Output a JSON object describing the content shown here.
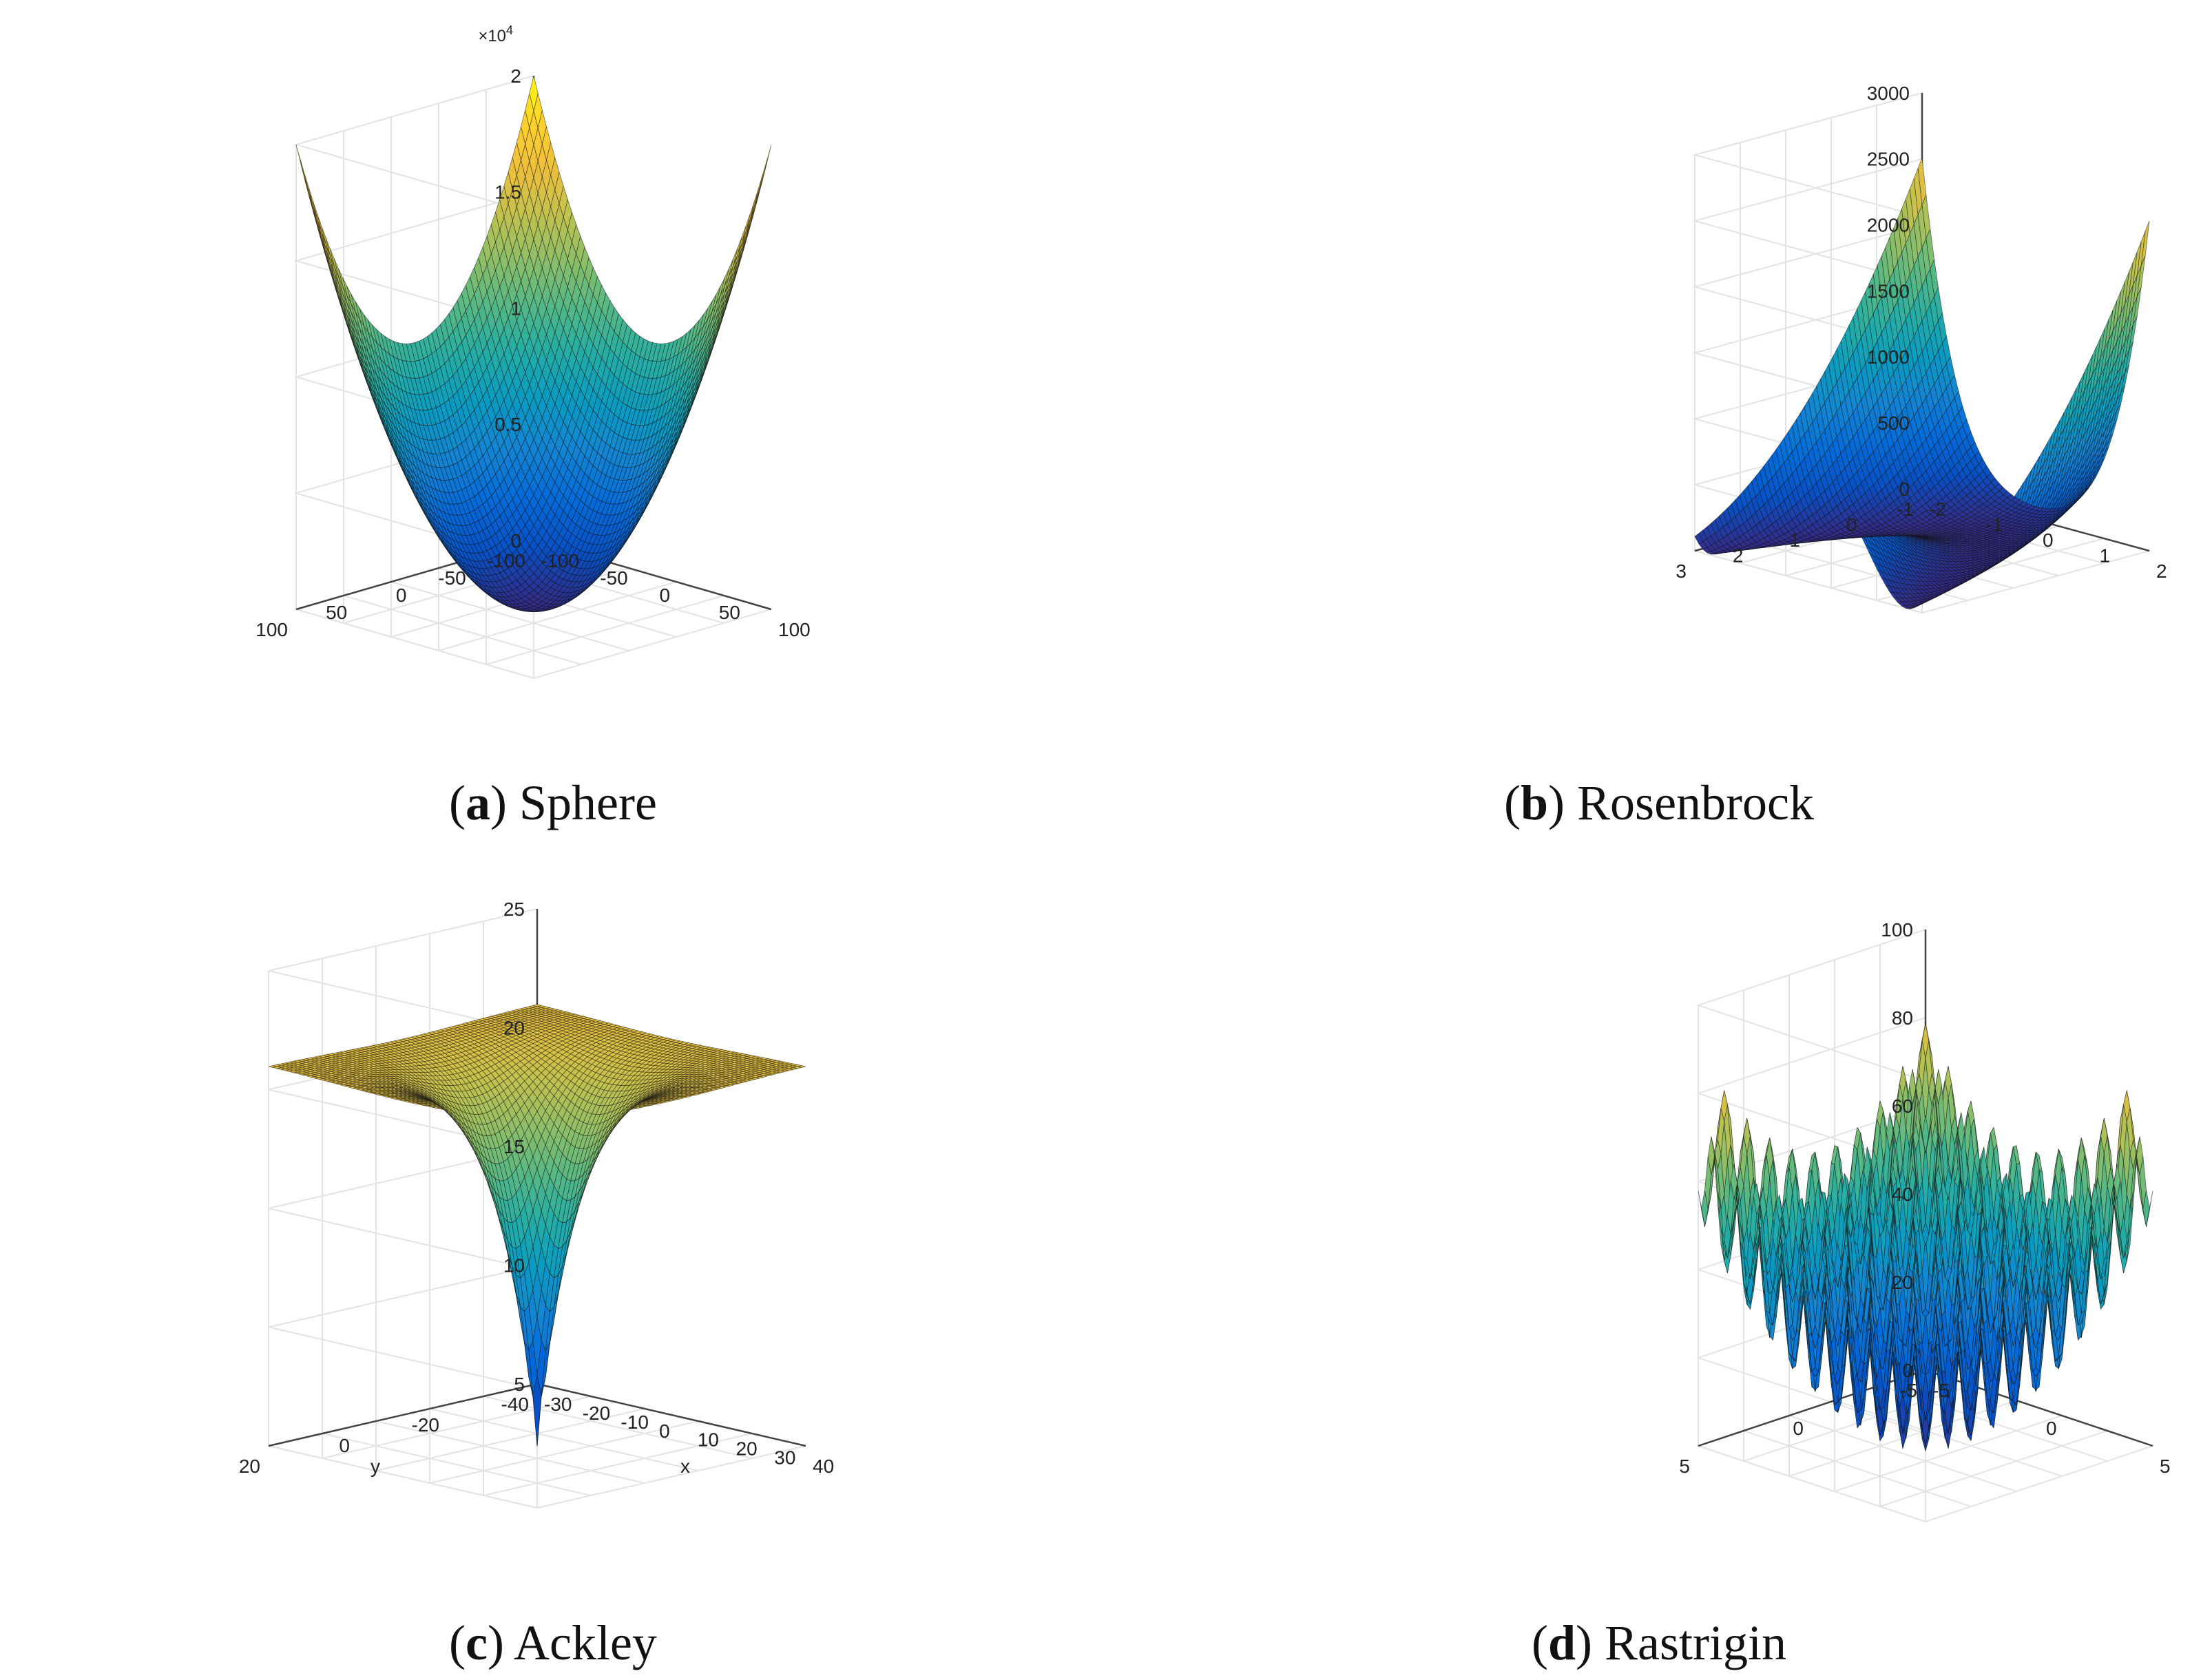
{
  "chart_data": [
    {
      "type": "surface",
      "function": "sphere",
      "caption_letter": "a",
      "caption_name": "Sphere",
      "x_range": [
        -100,
        100
      ],
      "y_range": [
        -100,
        100
      ],
      "z_range": [
        0,
        20000
      ],
      "x_ticks": [
        "-100",
        "-50",
        "0",
        "50",
        "100"
      ],
      "y_ticks": [
        "-100",
        "-50",
        "0",
        "50",
        "100"
      ],
      "z_ticks": [
        "0",
        "0.5",
        "1",
        "1.5",
        "2"
      ],
      "z_multiplier": "×10",
      "z_multiplier_exp": "4",
      "xlabel": "",
      "ylabel": ""
    },
    {
      "type": "surface",
      "function": "rosenbrock",
      "caption_letter": "b",
      "caption_name": "Rosenbrock",
      "x_range": [
        -2,
        2
      ],
      "y_range": [
        -1,
        3
      ],
      "z_range": [
        0,
        3000
      ],
      "x_ticks": [
        "-2",
        "-1",
        "0",
        "1",
        "2"
      ],
      "y_ticks": [
        "-1",
        "0",
        "1",
        "2",
        "3"
      ],
      "z_ticks": [
        "0",
        "500",
        "1000",
        "1500",
        "2000",
        "2500",
        "3000"
      ],
      "xlabel": "",
      "ylabel": ""
    },
    {
      "type": "surface",
      "function": "ackley",
      "caption_letter": "c",
      "caption_name": "Ackley",
      "x_range": [
        -32,
        32
      ],
      "y_range": [
        -32,
        32
      ],
      "z_range": [
        0,
        25
      ],
      "x_ticks": [
        "-30",
        "-20",
        "-10",
        "0",
        "10",
        "20",
        "30",
        "40"
      ],
      "y_ticks": [
        "-40",
        "-20",
        "0",
        "20"
      ],
      "z_ticks": [
        "5",
        "10",
        "15",
        "20",
        "25"
      ],
      "xlabel": "x",
      "ylabel": "y"
    },
    {
      "type": "surface",
      "function": "rastrigin",
      "caption_letter": "d",
      "caption_name": "Rastrigin",
      "x_range": [
        -5.12,
        5.12
      ],
      "y_range": [
        -5.12,
        5.12
      ],
      "z_range": [
        0,
        100
      ],
      "x_ticks": [
        "-5",
        "0",
        "5"
      ],
      "y_ticks": [
        "-5",
        "0",
        "5"
      ],
      "z_ticks": [
        "0",
        "20",
        "40",
        "60",
        "80",
        "100"
      ],
      "xlabel": "",
      "ylabel": ""
    }
  ]
}
